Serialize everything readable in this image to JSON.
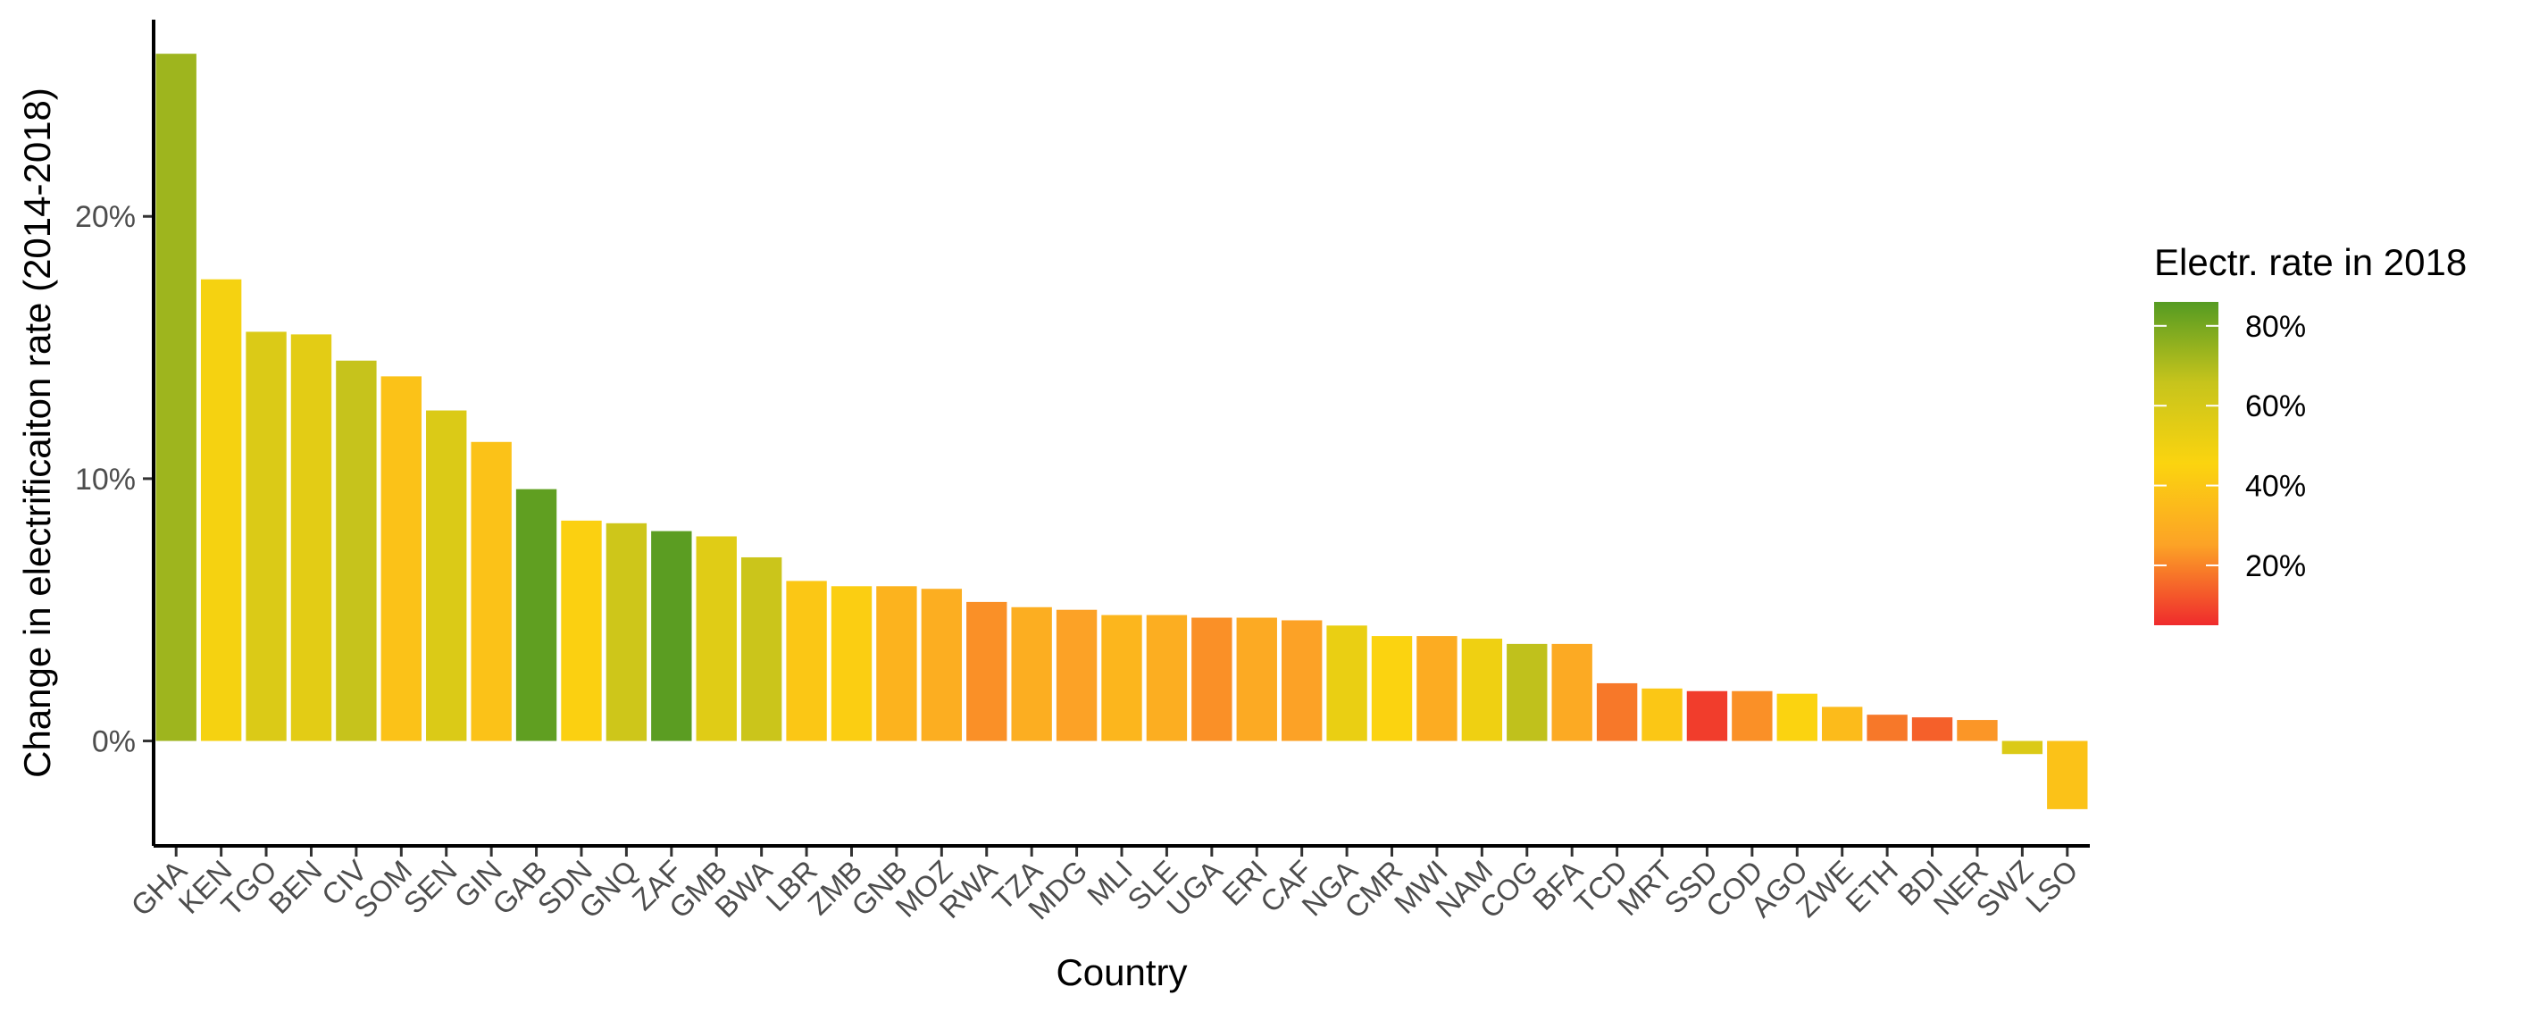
{
  "chart_data": {
    "type": "bar",
    "xlabel": "Country",
    "ylabel": "Change in electrificaiton rate (2014-2018)",
    "ylim": [
      -0.04,
      0.275
    ],
    "yticks": [
      0,
      0.1,
      0.2
    ],
    "ytick_labels": [
      "0%",
      "10%",
      "20%"
    ],
    "grid": false,
    "legend": {
      "title": "Electr. rate in 2018",
      "placement": "right",
      "range": [
        0.05,
        0.86
      ],
      "ticks": [
        0.2,
        0.4,
        0.6,
        0.8
      ],
      "tick_labels": [
        "20%",
        "40%",
        "60%",
        "80%"
      ],
      "colors": [
        "#ef2b2d",
        "#fca326",
        "#fbd40f",
        "#c7c41c",
        "#559b22"
      ]
    },
    "categories": [
      "GHA",
      "KEN",
      "TGO",
      "BEN",
      "CIV",
      "SOM",
      "SEN",
      "GIN",
      "GAB",
      "SDN",
      "GNQ",
      "ZAF",
      "GMB",
      "BWA",
      "LBR",
      "ZMB",
      "GNB",
      "MOZ",
      "RWA",
      "TZA",
      "MDG",
      "MLI",
      "SLE",
      "UGA",
      "ERI",
      "CAF",
      "NGA",
      "CMR",
      "MWI",
      "NAM",
      "COG",
      "BFA",
      "TCD",
      "MRT",
      "SSD",
      "COD",
      "AGO",
      "ZWE",
      "ETH",
      "BDI",
      "NER",
      "SWZ",
      "LSO"
    ],
    "values": [
      0.262,
      0.176,
      0.156,
      0.155,
      0.145,
      0.139,
      0.126,
      0.114,
      0.096,
      0.084,
      0.083,
      0.08,
      0.078,
      0.07,
      0.061,
      0.059,
      0.059,
      0.058,
      0.053,
      0.051,
      0.05,
      0.048,
      0.048,
      0.047,
      0.047,
      0.046,
      0.044,
      0.04,
      0.04,
      0.039,
      0.037,
      0.037,
      0.022,
      0.02,
      0.019,
      0.019,
      0.018,
      0.013,
      0.01,
      0.009,
      0.008,
      -0.005,
      -0.026
    ],
    "color_values": [
      0.73,
      0.48,
      0.58,
      0.55,
      0.66,
      0.38,
      0.58,
      0.38,
      0.84,
      0.44,
      0.63,
      0.85,
      0.56,
      0.64,
      0.4,
      0.43,
      0.32,
      0.3,
      0.22,
      0.3,
      0.25,
      0.33,
      0.3,
      0.22,
      0.28,
      0.25,
      0.52,
      0.45,
      0.29,
      0.5,
      0.67,
      0.28,
      0.18,
      0.4,
      0.08,
      0.22,
      0.45,
      0.35,
      0.18,
      0.14,
      0.23,
      0.58,
      0.38
    ]
  }
}
